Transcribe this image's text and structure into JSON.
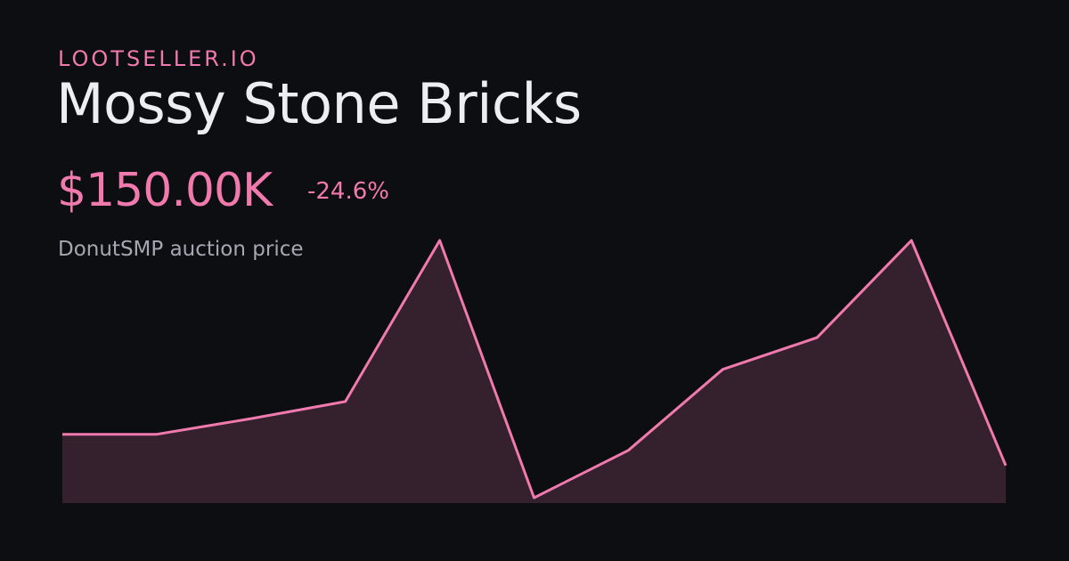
{
  "header": {
    "brand": "LOOTSELLER.IO",
    "title": "Mossy Stone Bricks",
    "price": "$150.00K",
    "change": "-24.6%",
    "subtitle": "DonutSMP auction price"
  },
  "chart_data": {
    "type": "area",
    "values": [
      156.8,
      156.8,
      160.2,
      163.9,
      198.9,
      143.0,
      153.3,
      170.9,
      177.8,
      198.9,
      150.0
    ],
    "ylim": [
      143.0,
      198.9
    ],
    "color": "#f07aad",
    "fill": "#35202d"
  }
}
